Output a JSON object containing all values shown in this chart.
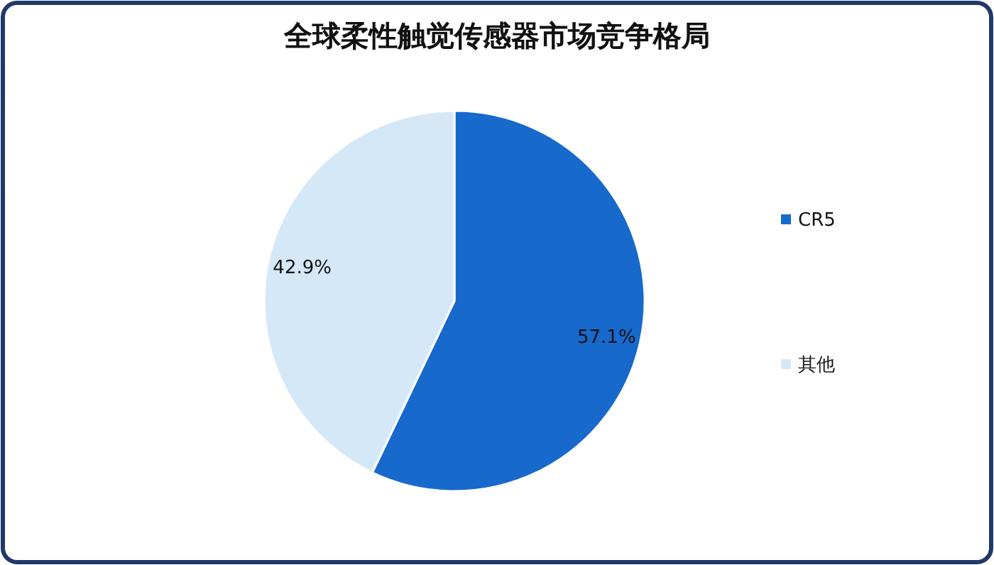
{
  "chart_data": {
    "type": "pie",
    "title": "全球柔性触觉传感器市场竞争格局",
    "categories": [
      "CR5",
      "其他"
    ],
    "values": [
      57.1,
      42.9
    ],
    "colors": [
      "#1769cc",
      "#d5e8f8"
    ],
    "value_labels": [
      "57.1%",
      "42.9%"
    ],
    "legend": "right"
  }
}
